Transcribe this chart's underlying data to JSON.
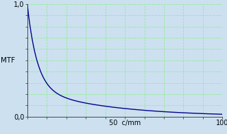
{
  "title": "",
  "ylabel": "MTF",
  "xlim": [
    0,
    100
  ],
  "ylim": [
    0.0,
    1.0
  ],
  "line_color": "#00008B",
  "grid_color": "#90EE90",
  "bg_color": "#cce0f0",
  "decay_fast": 5.0,
  "decay_slow": 40.0,
  "weight_fast": 0.75,
  "weight_slow": 0.25
}
